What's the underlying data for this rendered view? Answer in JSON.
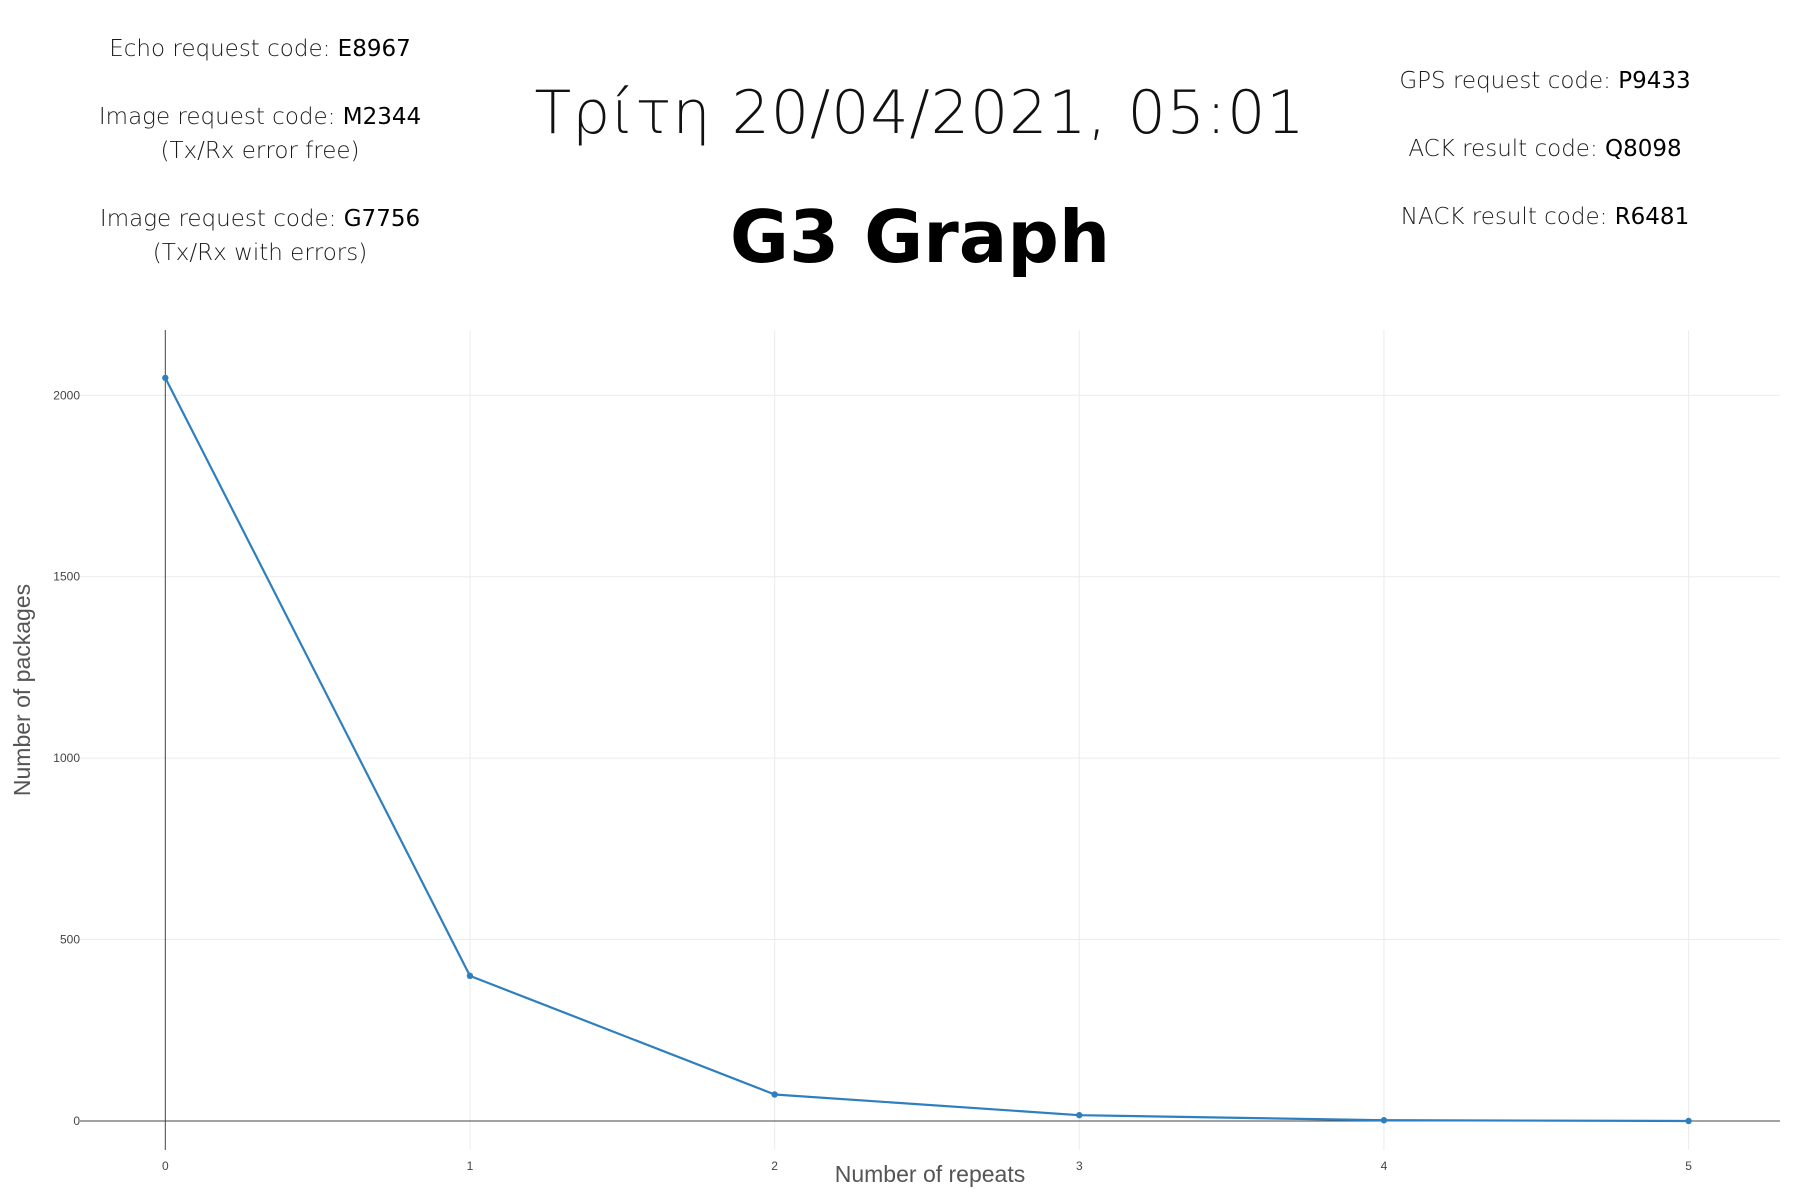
{
  "left_codes": {
    "echo_label": "Echo request code: ",
    "echo_value": "E8967",
    "image_free_label": "Image request code: ",
    "image_free_value": "M2344",
    "image_free_note": "(Tx/Rx error free)",
    "image_err_label": "Image request code: ",
    "image_err_value": "G7756",
    "image_err_note": "(Tx/Rx with errors)"
  },
  "right_codes": {
    "gps_label": "GPS request code: ",
    "gps_value": "P9433",
    "ack_label": "ACK result code: ",
    "ack_value": "Q8098",
    "nack_label": "NACK result code: ",
    "nack_value": "R6481"
  },
  "header": {
    "datetime": "Τρίτη 20/04/2021, 05:01",
    "title": "G3 Graph"
  },
  "chart_data": {
    "type": "line",
    "title": "G3 Graph",
    "xlabel": "Number of repeats",
    "ylabel": "Number of packages",
    "x": [
      0,
      1,
      2,
      3,
      4,
      5
    ],
    "y": [
      2048,
      400,
      73,
      16,
      2,
      0
    ],
    "xlim": [
      -0.28,
      5.3
    ],
    "ylim": [
      -80,
      2180
    ],
    "xticks": [
      0,
      1,
      2,
      3,
      4,
      5
    ],
    "yticks": [
      0,
      500,
      1000,
      1500,
      2000
    ],
    "grid": true,
    "line_color": "#2e7fbf"
  }
}
